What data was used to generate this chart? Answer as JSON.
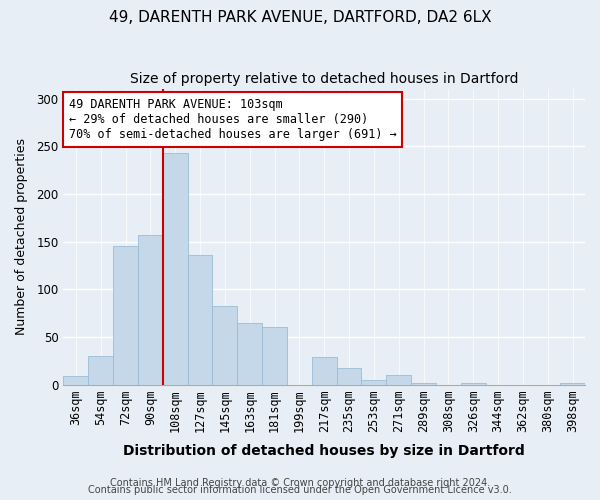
{
  "title": "49, DARENTH PARK AVENUE, DARTFORD, DA2 6LX",
  "subtitle": "Size of property relative to detached houses in Dartford",
  "xlabel": "Distribution of detached houses by size in Dartford",
  "ylabel": "Number of detached properties",
  "bar_labels": [
    "36sqm",
    "54sqm",
    "72sqm",
    "90sqm",
    "108sqm",
    "127sqm",
    "145sqm",
    "163sqm",
    "181sqm",
    "199sqm",
    "217sqm",
    "235sqm",
    "253sqm",
    "271sqm",
    "289sqm",
    "308sqm",
    "326sqm",
    "344sqm",
    "362sqm",
    "380sqm",
    "398sqm"
  ],
  "bar_values": [
    9,
    30,
    145,
    157,
    243,
    136,
    83,
    65,
    61,
    0,
    29,
    18,
    5,
    10,
    2,
    0,
    2,
    0,
    0,
    0,
    2
  ],
  "bar_color": "#c5d8ea",
  "bar_edge_color": "#9bbcd4",
  "vline_color": "#cc0000",
  "vline_bar_index": 4,
  "annotation_text": "49 DARENTH PARK AVENUE: 103sqm\n← 29% of detached houses are smaller (290)\n70% of semi-detached houses are larger (691) →",
  "annotation_box_edge_color": "#cc0000",
  "annotation_box_face_color": "#ffffff",
  "footer_line1": "Contains HM Land Registry data © Crown copyright and database right 2024.",
  "footer_line2": "Contains public sector information licensed under the Open Government Licence v3.0.",
  "ylim": [
    0,
    310
  ],
  "yticks": [
    0,
    50,
    100,
    150,
    200,
    250,
    300
  ],
  "title_fontsize": 11,
  "subtitle_fontsize": 10,
  "xlabel_fontsize": 10,
  "ylabel_fontsize": 9,
  "tick_fontsize": 8.5,
  "annotation_fontsize": 8.5,
  "footer_fontsize": 7,
  "background_color": "#e8eef5",
  "grid_color": "#ffffff",
  "spine_color": "#aaaaaa"
}
